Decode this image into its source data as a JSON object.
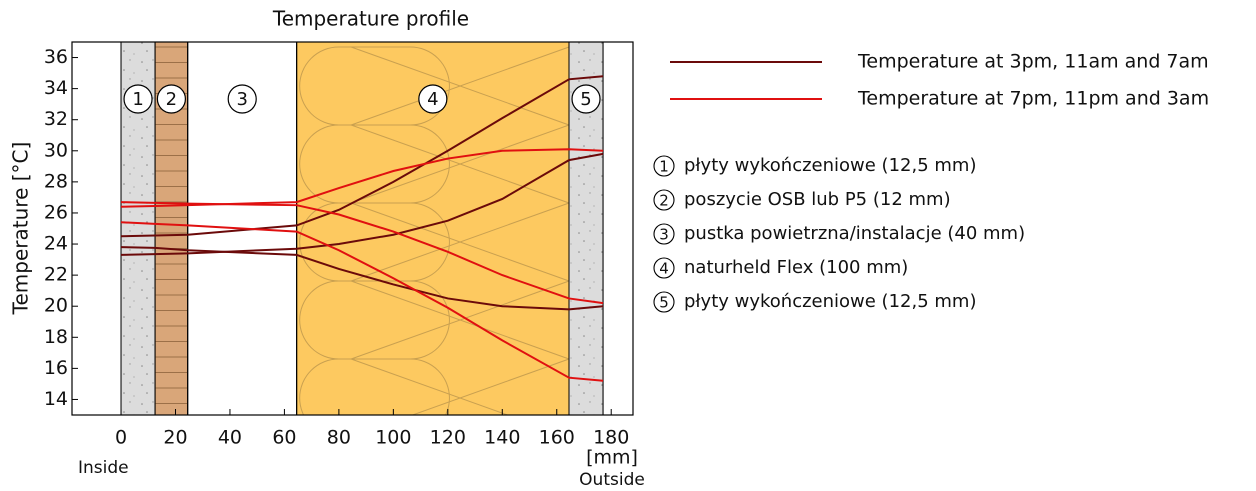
{
  "chart_data": {
    "type": "line",
    "title": "Temperature profile",
    "y_label": "Temperature  [°C]",
    "x_unit": "[mm]",
    "inside_label": "Inside",
    "outside_label": "Outside",
    "xlim": [
      -18,
      188
    ],
    "ylim": [
      13,
      37
    ],
    "xticks": [
      0,
      20,
      40,
      60,
      80,
      100,
      120,
      140,
      160,
      180
    ],
    "yticks": [
      14,
      16,
      18,
      20,
      22,
      24,
      26,
      28,
      30,
      32,
      34,
      36
    ],
    "x": [
      0,
      12.5,
      24.5,
      64.5,
      80,
      100,
      120,
      140,
      164.5,
      177
    ],
    "series": [
      {
        "name": "Temperature at 3pm, 11am and 7am",
        "color": "#6b0a0a",
        "values": [
          [
            24.5,
            24.55,
            24.6,
            25.2,
            26.2,
            28.0,
            30.0,
            32.1,
            34.6,
            34.8
          ],
          [
            23.3,
            23.35,
            23.4,
            23.7,
            24.0,
            24.6,
            25.5,
            26.9,
            29.4,
            29.8
          ],
          [
            23.8,
            23.75,
            23.6,
            23.3,
            22.4,
            21.4,
            20.5,
            20.0,
            19.8,
            20.0
          ]
        ]
      },
      {
        "name": "Temperature at 7pm, 11pm and 3am",
        "color": "#e01010",
        "values": [
          [
            26.4,
            26.45,
            26.5,
            26.7,
            27.6,
            28.7,
            29.5,
            30.0,
            30.1,
            30.0
          ],
          [
            26.7,
            26.65,
            26.6,
            26.5,
            25.9,
            24.8,
            23.5,
            22.0,
            20.5,
            20.2
          ],
          [
            25.4,
            25.3,
            25.2,
            24.8,
            23.6,
            21.8,
            19.9,
            17.8,
            15.4,
            15.2
          ]
        ]
      }
    ],
    "layers": [
      {
        "from": 0,
        "to": 12.5,
        "number": "1",
        "description": "płyty wykończeniowe (12,5 mm)",
        "fill": "#dcdcdc",
        "pattern": "speckle"
      },
      {
        "from": 12.5,
        "to": 24.5,
        "number": "2",
        "description": "poszycie OSB lub P5 (12 mm)",
        "fill": "#d9a679",
        "pattern": "planks"
      },
      {
        "from": 24.5,
        "to": 64.5,
        "number": "3",
        "description": "pustka powietrzna/instalacje (40 mm)",
        "fill": "#ffffff"
      },
      {
        "from": 64.5,
        "to": 164.5,
        "number": "4",
        "description": "naturheld Flex (100 mm)",
        "fill": "#fdc960",
        "pattern": "insulation"
      },
      {
        "from": 164.5,
        "to": 177,
        "number": "5",
        "description": "płyty wykończeniowe (12,5 mm)",
        "fill": "#dcdcdc",
        "pattern": "speckle"
      }
    ]
  }
}
